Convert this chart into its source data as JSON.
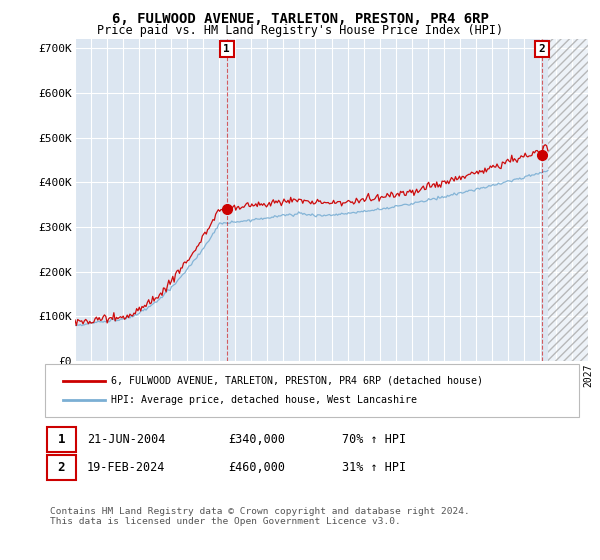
{
  "title": "6, FULWOOD AVENUE, TARLETON, PRESTON, PR4 6RP",
  "subtitle": "Price paid vs. HM Land Registry's House Price Index (HPI)",
  "hpi_label": "HPI: Average price, detached house, West Lancashire",
  "property_label": "6, FULWOOD AVENUE, TARLETON, PRESTON, PR4 6RP (detached house)",
  "footnote": "Contains HM Land Registry data © Crown copyright and database right 2024.\nThis data is licensed under the Open Government Licence v3.0.",
  "sale1": {
    "label": "1",
    "date": "21-JUN-2004",
    "price": "£340,000",
    "hpi": "70% ↑ HPI"
  },
  "sale2": {
    "label": "2",
    "date": "19-FEB-2024",
    "price": "£460,000",
    "hpi": "31% ↑ HPI"
  },
  "ylim": [
    0,
    720000
  ],
  "yticks": [
    0,
    100000,
    200000,
    300000,
    400000,
    500000,
    600000,
    700000
  ],
  "ytick_labels": [
    "£0",
    "£100K",
    "£200K",
    "£300K",
    "£400K",
    "£500K",
    "£600K",
    "£700K"
  ],
  "background_color": "#ffffff",
  "plot_bg_color": "#dce6f1",
  "red_color": "#cc0000",
  "blue_color": "#7bafd4",
  "marker1_x": 2004.47,
  "marker1_y": 340000,
  "marker2_x": 2024.12,
  "marker2_y": 460000,
  "vline1_x": 2004.47,
  "vline2_x": 2024.12,
  "xmin": 1995,
  "xmax": 2027,
  "hatch_start": 2024.5
}
